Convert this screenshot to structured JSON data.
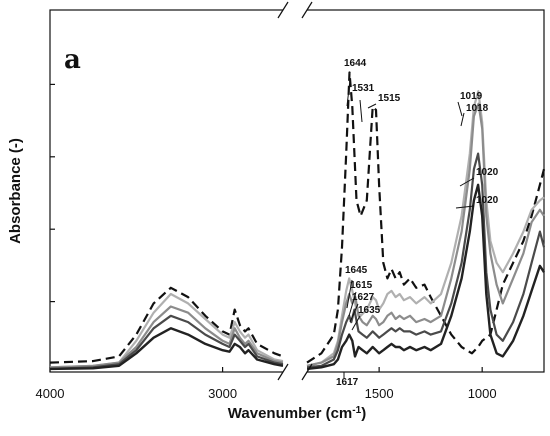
{
  "chart_data": {
    "type": "line",
    "panel_label": "a",
    "xlabel": "Wavenumber (cm",
    "xlabel_sup": "-1",
    "xlabel_close": ")",
    "ylabel": "Absorbance (-)",
    "x_reversed": true,
    "x_break": [
      2650,
      1850
    ],
    "xlim": [
      4000,
      700
    ],
    "ylim": [
      0,
      1
    ],
    "x_ticks": [
      {
        "value": 4000,
        "label": "4000"
      },
      {
        "value": 3000,
        "label": "3000"
      },
      {
        "value": 1500,
        "label": "1500"
      },
      {
        "value": 1000,
        "label": "1000"
      }
    ],
    "y_tick_count": 5,
    "annotations": [
      {
        "label": "1644",
        "x": 1644,
        "y": 0.855
      },
      {
        "label": "1531",
        "x": 1531,
        "y": 0.79
      },
      {
        "label": "1515",
        "x": 1515,
        "y": 0.78
      },
      {
        "label": "1019",
        "x": 1019,
        "y": 0.76
      },
      {
        "label": "1018",
        "x": 1018,
        "y": 0.735
      },
      {
        "label": "1020",
        "x": 1020,
        "y": 0.6
      },
      {
        "label": "1020",
        "x": 1020,
        "y": 0.52
      },
      {
        "label": "1645",
        "x": 1645,
        "y": 0.295
      },
      {
        "label": "1615",
        "x": 1615,
        "y": 0.25
      },
      {
        "label": "1627",
        "x": 1627,
        "y": 0.205
      },
      {
        "label": "1635",
        "x": 1635,
        "y": 0.165
      },
      {
        "label": "1617",
        "x": 1617,
        "y": -0.03
      }
    ],
    "series": [
      {
        "color": "#111111",
        "dash": "9,5",
        "width": 2.2,
        "x": [
          4000,
          3750,
          3600,
          3500,
          3400,
          3300,
          3200,
          3100,
          3000,
          2960,
          2930,
          2900,
          2870,
          2850,
          2800,
          2700,
          2650,
          1850,
          1780,
          1720,
          1700,
          1680,
          1660,
          1644,
          1630,
          1610,
          1590,
          1560,
          1531,
          1515,
          1500,
          1480,
          1460,
          1440,
          1420,
          1400,
          1380,
          1350,
          1320,
          1280,
          1250,
          1200,
          1150,
          1100,
          1050,
          1020,
          1000,
          960,
          930,
          900,
          850,
          800,
          760,
          720,
          700
        ],
        "y": [
          0.03,
          0.035,
          0.05,
          0.12,
          0.22,
          0.27,
          0.24,
          0.18,
          0.13,
          0.12,
          0.2,
          0.15,
          0.13,
          0.14,
          0.09,
          0.06,
          0.05,
          0.03,
          0.06,
          0.12,
          0.2,
          0.4,
          0.7,
          0.96,
          0.85,
          0.55,
          0.5,
          0.55,
          0.85,
          0.84,
          0.6,
          0.35,
          0.3,
          0.33,
          0.3,
          0.32,
          0.28,
          0.3,
          0.27,
          0.28,
          0.24,
          0.18,
          0.12,
          0.08,
          0.06,
          0.08,
          0.1,
          0.12,
          0.2,
          0.28,
          0.35,
          0.42,
          0.5,
          0.6,
          0.65
        ]
      },
      {
        "color": "#b0b0b0",
        "dash": "",
        "width": 2.2,
        "x": [
          4000,
          3750,
          3600,
          3500,
          3400,
          3300,
          3200,
          3100,
          3000,
          2960,
          2930,
          2900,
          2870,
          2850,
          2800,
          2700,
          2650,
          1850,
          1780,
          1720,
          1700,
          1680,
          1660,
          1645,
          1630,
          1610,
          1590,
          1560,
          1531,
          1515,
          1500,
          1480,
          1460,
          1440,
          1420,
          1400,
          1380,
          1350,
          1320,
          1280,
          1250,
          1200,
          1150,
          1100,
          1060,
          1040,
          1019,
          1000,
          980,
          960,
          930,
          900,
          850,
          800,
          760,
          720,
          700
        ],
        "y": [
          0.015,
          0.02,
          0.03,
          0.1,
          0.19,
          0.25,
          0.22,
          0.17,
          0.12,
          0.11,
          0.16,
          0.13,
          0.11,
          0.12,
          0.07,
          0.04,
          0.035,
          0.02,
          0.03,
          0.06,
          0.1,
          0.18,
          0.26,
          0.3,
          0.26,
          0.2,
          0.18,
          0.2,
          0.24,
          0.23,
          0.2,
          0.22,
          0.25,
          0.26,
          0.24,
          0.25,
          0.23,
          0.24,
          0.22,
          0.24,
          0.22,
          0.25,
          0.35,
          0.5,
          0.7,
          0.85,
          0.9,
          0.8,
          0.55,
          0.42,
          0.35,
          0.32,
          0.38,
          0.45,
          0.52,
          0.55,
          0.56
        ]
      },
      {
        "color": "#8c8c8c",
        "dash": "",
        "width": 2.2,
        "x": [
          4000,
          3750,
          3600,
          3500,
          3400,
          3300,
          3200,
          3100,
          3000,
          2960,
          2930,
          2900,
          2870,
          2850,
          2800,
          2700,
          2650,
          1850,
          1780,
          1720,
          1700,
          1680,
          1660,
          1645,
          1630,
          1615,
          1600,
          1580,
          1560,
          1531,
          1515,
          1500,
          1480,
          1460,
          1440,
          1420,
          1400,
          1380,
          1350,
          1320,
          1280,
          1250,
          1200,
          1150,
          1100,
          1060,
          1040,
          1018,
          1000,
          980,
          960,
          930,
          900,
          850,
          800,
          760,
          720,
          700
        ],
        "y": [
          0.015,
          0.02,
          0.03,
          0.08,
          0.16,
          0.21,
          0.19,
          0.14,
          0.1,
          0.09,
          0.14,
          0.11,
          0.09,
          0.1,
          0.06,
          0.035,
          0.03,
          0.02,
          0.03,
          0.05,
          0.09,
          0.16,
          0.22,
          0.25,
          0.22,
          0.24,
          0.18,
          0.16,
          0.15,
          0.18,
          0.17,
          0.15,
          0.16,
          0.18,
          0.19,
          0.17,
          0.18,
          0.17,
          0.18,
          0.16,
          0.17,
          0.16,
          0.18,
          0.3,
          0.45,
          0.65,
          0.82,
          0.86,
          0.78,
          0.5,
          0.38,
          0.28,
          0.22,
          0.3,
          0.38,
          0.48,
          0.52,
          0.5
        ]
      },
      {
        "color": "#4a4a4a",
        "dash": "",
        "width": 2.2,
        "x": [
          4000,
          3750,
          3600,
          3500,
          3400,
          3300,
          3200,
          3100,
          3000,
          2960,
          2930,
          2900,
          2870,
          2850,
          2800,
          2700,
          2650,
          1850,
          1780,
          1720,
          1700,
          1680,
          1660,
          1645,
          1635,
          1620,
          1600,
          1580,
          1560,
          1531,
          1515,
          1500,
          1480,
          1460,
          1440,
          1420,
          1400,
          1380,
          1350,
          1320,
          1280,
          1250,
          1200,
          1150,
          1100,
          1060,
          1040,
          1020,
          1000,
          980,
          960,
          930,
          900,
          850,
          800,
          760,
          720,
          700
        ],
        "y": [
          0.01,
          0.015,
          0.025,
          0.07,
          0.14,
          0.18,
          0.16,
          0.12,
          0.09,
          0.08,
          0.12,
          0.1,
          0.08,
          0.09,
          0.05,
          0.03,
          0.025,
          0.015,
          0.02,
          0.04,
          0.07,
          0.12,
          0.16,
          0.18,
          0.16,
          0.2,
          0.13,
          0.12,
          0.11,
          0.13,
          0.12,
          0.11,
          0.12,
          0.13,
          0.14,
          0.13,
          0.14,
          0.13,
          0.13,
          0.12,
          0.13,
          0.12,
          0.13,
          0.22,
          0.35,
          0.52,
          0.65,
          0.7,
          0.6,
          0.32,
          0.2,
          0.12,
          0.1,
          0.16,
          0.25,
          0.35,
          0.45,
          0.4
        ]
      },
      {
        "color": "#222222",
        "dash": "",
        "width": 2.4,
        "x": [
          4000,
          3750,
          3600,
          3500,
          3400,
          3300,
          3200,
          3100,
          3000,
          2960,
          2930,
          2900,
          2870,
          2850,
          2800,
          2700,
          2650,
          1850,
          1780,
          1720,
          1700,
          1680,
          1660,
          1645,
          1630,
          1617,
          1600,
          1580,
          1560,
          1531,
          1515,
          1500,
          1480,
          1460,
          1440,
          1420,
          1400,
          1380,
          1350,
          1320,
          1280,
          1250,
          1200,
          1150,
          1100,
          1060,
          1040,
          1020,
          1000,
          980,
          960,
          930,
          900,
          850,
          800,
          760,
          720,
          700
        ],
        "y": [
          0.01,
          0.012,
          0.02,
          0.06,
          0.11,
          0.14,
          0.12,
          0.09,
          0.07,
          0.065,
          0.09,
          0.08,
          0.06,
          0.07,
          0.04,
          0.025,
          0.02,
          0.01,
          0.015,
          0.025,
          0.04,
          0.08,
          0.1,
          0.12,
          0.1,
          0.05,
          0.08,
          0.07,
          0.06,
          0.08,
          0.07,
          0.06,
          0.07,
          0.08,
          0.09,
          0.08,
          0.08,
          0.07,
          0.08,
          0.07,
          0.08,
          0.07,
          0.09,
          0.18,
          0.3,
          0.45,
          0.55,
          0.6,
          0.5,
          0.25,
          0.12,
          0.06,
          0.05,
          0.1,
          0.18,
          0.26,
          0.34,
          0.32
        ]
      }
    ]
  }
}
